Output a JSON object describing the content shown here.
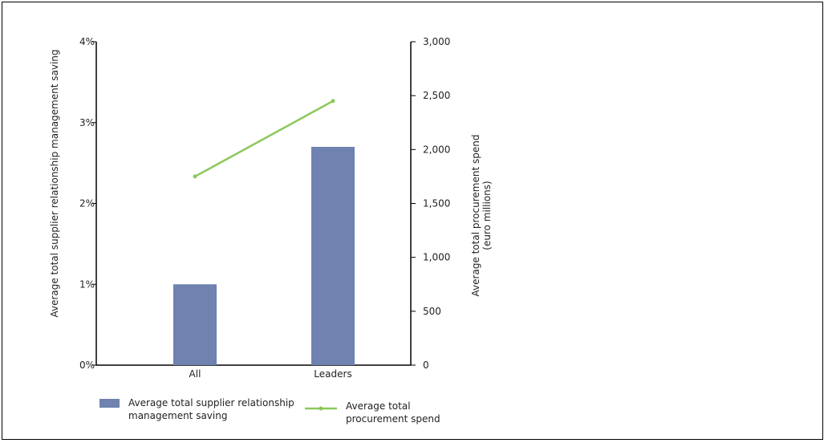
{
  "chart_data": {
    "type": "bar",
    "categories": [
      "All",
      "Leaders"
    ],
    "series": [
      {
        "name": "Average total supplier relationship management saving",
        "type": "bar",
        "axis": "left",
        "values": [
          1.0,
          2.7
        ],
        "color": "#6f82b0"
      },
      {
        "name": "Average total procurement spend",
        "type": "line",
        "axis": "right",
        "values": [
          1750,
          2450
        ],
        "color": "#8cc85a"
      }
    ],
    "y_left": {
      "label": "Average total supplier relationship management saving",
      "range": [
        0,
        4
      ],
      "ticks": [
        0,
        1,
        2,
        3,
        4
      ],
      "tick_labels": [
        "0%",
        "1%",
        "2%",
        "3%",
        "4%"
      ]
    },
    "y_right": {
      "label_lines": [
        "Average total procurement spend",
        "(euro millions)"
      ],
      "range": [
        0,
        3000
      ],
      "ticks": [
        0,
        500,
        1000,
        1500,
        2000,
        2500,
        3000
      ],
      "tick_labels": [
        "0",
        "500",
        "1,000",
        "1,500",
        "2,000",
        "2,500",
        "3,000"
      ]
    },
    "legend": {
      "placement": "bottom-left",
      "items": [
        {
          "series": 0,
          "lines": [
            "Average total supplier relationship",
            "management saving"
          ]
        },
        {
          "series": 1,
          "lines": [
            "Average total",
            "procurement spend"
          ]
        }
      ]
    },
    "grid": false
  }
}
